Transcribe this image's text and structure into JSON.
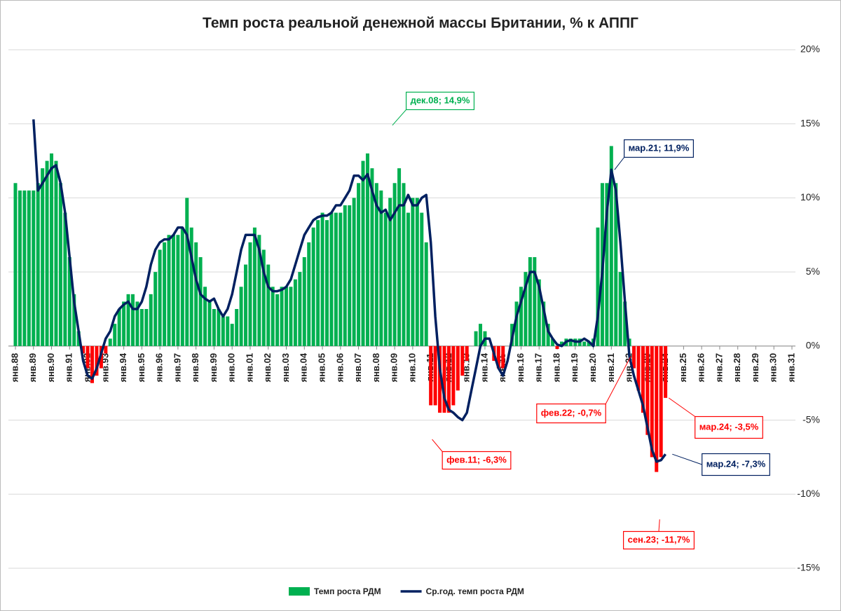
{
  "chart_data": {
    "type": "bar_line",
    "title": "Темп роста реальной денежной массы Британии, % к АППГ",
    "categories": [
      "янв.88",
      null,
      null,
      null,
      "янв.89",
      null,
      null,
      null,
      "янв.90",
      null,
      null,
      null,
      "янв.91",
      null,
      null,
      null,
      "янв.92",
      null,
      null,
      null,
      "янв.93",
      null,
      null,
      null,
      "янв.94",
      null,
      null,
      null,
      "янв.95",
      null,
      null,
      null,
      "янв.96",
      null,
      null,
      null,
      "янв.97",
      null,
      null,
      null,
      "янв.98",
      null,
      null,
      null,
      "янв.99",
      null,
      null,
      null,
      "янв.00",
      null,
      null,
      null,
      "янв.01",
      null,
      null,
      null,
      "янв.02",
      null,
      null,
      null,
      "янв.03",
      null,
      null,
      null,
      "янв.04",
      null,
      null,
      null,
      "янв.05",
      null,
      null,
      null,
      "янв.06",
      null,
      null,
      null,
      "янв.07",
      null,
      null,
      null,
      "янв.08",
      null,
      null,
      null,
      "янв.09",
      null,
      null,
      null,
      "янв.10",
      null,
      null,
      null,
      "янв.11",
      null,
      null,
      null,
      "янв.12",
      null,
      null,
      null,
      "янв.13",
      null,
      null,
      null,
      "янв.14",
      null,
      null,
      null,
      "янв.15",
      null,
      null,
      null,
      "янв.16",
      null,
      null,
      null,
      "янв.17",
      null,
      null,
      null,
      "янв.18",
      null,
      null,
      null,
      "янв.19",
      null,
      null,
      null,
      "янв.20",
      null,
      null,
      null,
      "янв.21",
      null,
      null,
      null,
      "янв.22",
      null,
      null,
      null,
      "янв.23",
      null,
      null,
      null,
      "янв.24",
      null,
      null,
      null,
      "янв.25",
      null,
      null,
      null,
      "янв.26",
      null,
      null,
      null,
      "янв.27",
      null,
      null,
      null,
      "янв.28",
      null,
      null,
      null,
      "янв.29",
      null,
      null,
      null,
      "янв.30",
      null,
      null,
      null,
      "янв.31"
    ],
    "series": [
      {
        "name": "Темп роста РДМ",
        "kind": "bar",
        "color": "#00b050",
        "negative_color": "#ff0000",
        "values": [
          11,
          10.5,
          10.5,
          10.5,
          10.5,
          11,
          12,
          12.5,
          13,
          12.5,
          11,
          9,
          6,
          3.5,
          1,
          -0.5,
          -1.5,
          -2.5,
          -2,
          -1.5,
          -0.5,
          0.5,
          1.5,
          2.5,
          3,
          3.5,
          3.5,
          3,
          2.5,
          2.5,
          3.5,
          5,
          6.5,
          7,
          7.5,
          7.5,
          7.5,
          8,
          10,
          8,
          7,
          6,
          4,
          3,
          2.5,
          2.5,
          2,
          2,
          1.5,
          2.5,
          4,
          5.5,
          7,
          8,
          7.5,
          6.5,
          5.5,
          4,
          3.5,
          4,
          4,
          4,
          4.5,
          5,
          6,
          7,
          8,
          8.5,
          9,
          8.5,
          9,
          9,
          9,
          9.5,
          9.5,
          10,
          11,
          12.5,
          13,
          12,
          11,
          10.5,
          9,
          10,
          11,
          12,
          11,
          9,
          10,
          10,
          9,
          7,
          -4,
          -4,
          -4.5,
          -4.5,
          -4.5,
          -4,
          -3,
          -2,
          -1,
          0,
          1,
          1.5,
          1,
          0,
          -1,
          -1.5,
          -1.5,
          0,
          1.5,
          3,
          4,
          5,
          6,
          6,
          4.5,
          3,
          1.5,
          0.5,
          -0.2,
          0.3,
          0.5,
          0.5,
          0.5,
          0.5,
          0.3,
          0.3,
          0.5,
          8,
          11,
          11,
          13.5,
          11,
          5,
          3,
          0.5,
          -1.5,
          -3,
          -4.5,
          -6,
          -7.5,
          -8.5,
          -7.5,
          -3.5,
          null,
          null,
          null,
          null,
          null,
          null,
          null,
          null,
          null,
          null,
          null,
          null,
          null,
          null,
          null,
          null,
          null,
          null,
          null,
          null,
          null,
          null,
          null,
          null,
          null,
          null,
          null,
          null
        ]
      },
      {
        "name": "Ср.год. темп роста РДМ",
        "kind": "line",
        "color": "#002060",
        "values": [
          null,
          null,
          null,
          null,
          15.3,
          10.5,
          11,
          11.5,
          12,
          12.2,
          11,
          9,
          6,
          3,
          1,
          -1,
          -2,
          -2.2,
          -1.5,
          -0.5,
          0.5,
          1,
          2,
          2.5,
          2.8,
          3,
          2.5,
          2.5,
          3,
          4,
          5.5,
          6.5,
          7,
          7.2,
          7.2,
          7.5,
          8,
          8,
          7.5,
          6,
          4.5,
          3.5,
          3.2,
          3,
          3.2,
          2.5,
          2,
          2.5,
          3.5,
          5,
          6.5,
          7.5,
          7.5,
          7.5,
          6.5,
          5,
          4,
          3.7,
          3.7,
          3.8,
          4,
          4.5,
          5.5,
          6.5,
          7.5,
          8,
          8.5,
          8.7,
          8.8,
          8.8,
          9,
          9.5,
          9.5,
          10,
          10.5,
          11.5,
          11.5,
          11.2,
          11.6,
          10.5,
          9.5,
          9,
          9.2,
          8.5,
          9,
          9.5,
          9.5,
          10.2,
          9.5,
          9.5,
          10,
          10.2,
          7,
          2,
          -1.5,
          -3.5,
          -4.3,
          -4.5,
          -4.8,
          -5,
          -4.5,
          -3,
          -1.5,
          0,
          0.5,
          0.5,
          -0.5,
          -1.5,
          -2,
          -1,
          0.5,
          2,
          3,
          4,
          5,
          5,
          4,
          2.5,
          1,
          0.5,
          0.1,
          0,
          0.3,
          0.4,
          0.3,
          0.3,
          0.5,
          0.3,
          0,
          2,
          5,
          9,
          11.9,
          10.5,
          7,
          3,
          -0.7,
          -2,
          -3,
          -4,
          -5.5,
          -7,
          -7.8,
          -7.7,
          -7.3,
          null,
          null,
          null,
          null,
          null,
          null,
          null,
          null,
          null,
          null,
          null,
          null,
          null,
          null,
          null,
          null,
          null,
          null,
          null,
          null,
          null,
          null,
          null,
          null,
          null,
          null,
          null,
          null
        ]
      }
    ],
    "ylim": [
      -15,
      20
    ],
    "yticks": [
      {
        "value": -15,
        "label": "-15%"
      },
      {
        "value": -10,
        "label": "-10%"
      },
      {
        "value": -5,
        "label": "-5%"
      },
      {
        "value": 0,
        "label": "0%"
      },
      {
        "value": 5,
        "label": "5%"
      },
      {
        "value": 10,
        "label": "10%"
      },
      {
        "value": 15,
        "label": "15%"
      },
      {
        "value": 20,
        "label": "20%"
      }
    ],
    "grid": true,
    "legend": "bottom",
    "annotations": [
      {
        "text": "дек.08; 14,9%",
        "value": 14.9,
        "color": "#00b050"
      },
      {
        "text": "мар.21; 11,9%",
        "value": 11.9,
        "color": "#002060"
      },
      {
        "text": "фев.22; -0,7%",
        "value": -0.7,
        "color": "#ff0000"
      },
      {
        "text": "мар.24; -3,5%",
        "value": -3.5,
        "color": "#ff0000"
      },
      {
        "text": "мар.24; -7,3%",
        "value": -7.3,
        "color": "#002060"
      },
      {
        "text": "фев.11; -6,3%",
        "value": -6.3,
        "color": "#ff0000"
      },
      {
        "text": "сен.23; -11,7%",
        "value": -11.7,
        "color": "#ff0000"
      }
    ]
  }
}
